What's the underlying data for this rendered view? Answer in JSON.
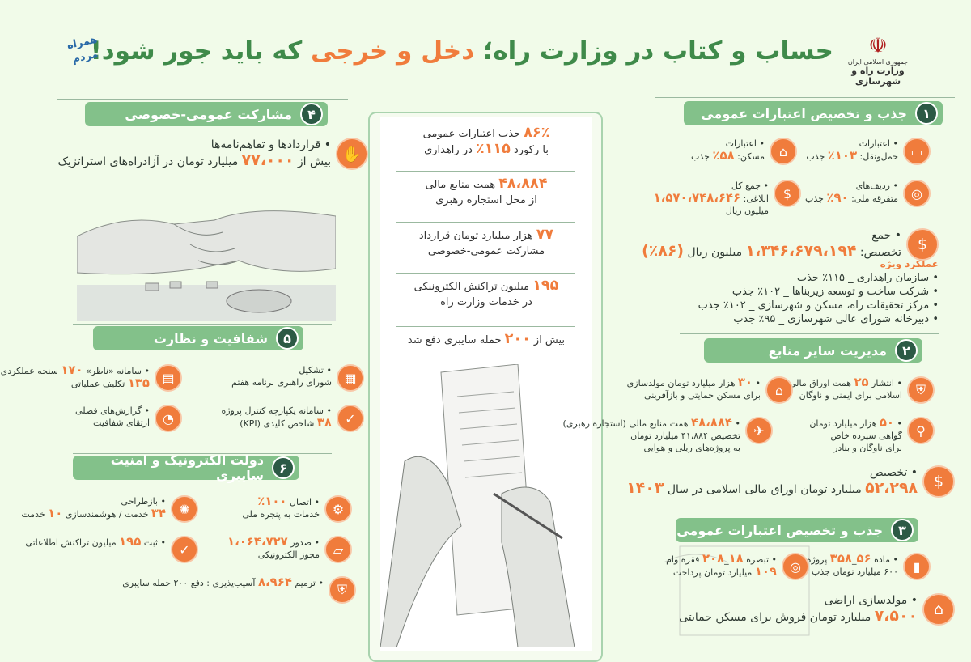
{
  "header": {
    "title_part1": "حساب و کتاب در وزارت راه؛ ",
    "title_highlight": "دخل و خرجی",
    "title_part2": " که باید جور شود!",
    "ministry_line1": "جمهوری اسلامی ایران",
    "ministry_line2": "وزارت راه و شهرسازی",
    "campaign_logo": "همراه مردم"
  },
  "colors": {
    "background": "#f1fbe9",
    "section_green": "#83c18a",
    "number_dark_green": "#2c5a45",
    "accent_orange": "#f07c3c",
    "title_green": "#3f8a4a"
  },
  "sections": [
    {
      "id": "s1",
      "number": "۱",
      "title": "جذب و تخصیص اعتبارات عمومی",
      "items": [
        {
          "icon": "bus-icon",
          "lines": [
            [
              {
                "t": "اعتبارات"
              }
            ],
            [
              {
                "t": "حمل‌ونقل: "
              },
              {
                "t": "۱۰۳٪",
                "hl": true
              },
              {
                "t": " جذب"
              }
            ]
          ]
        },
        {
          "icon": "house-icon",
          "lines": [
            [
              {
                "t": "اعتبارات"
              }
            ],
            [
              {
                "t": "مسکن: "
              },
              {
                "t": "۵۸٪",
                "hl": true
              },
              {
                "t": " جذب"
              }
            ]
          ]
        },
        {
          "icon": "coins-icon",
          "lines": [
            [
              {
                "t": "ردیف‌های"
              }
            ],
            [
              {
                "t": "متفرقه ملی: "
              },
              {
                "t": "۹۰٪",
                "hl": true
              },
              {
                "t": " جذب"
              }
            ]
          ]
        },
        {
          "icon": "money-hand-icon",
          "lines": [
            [
              {
                "t": "جمع کل"
              }
            ],
            [
              {
                "t": "ابلاغی: "
              },
              {
                "t": "۱،۵۷۰،۷۴۸،۶۴۶",
                "hl": true
              },
              {
                "t": " میلیون ریال"
              }
            ]
          ]
        },
        {
          "icon": "money-hand-icon",
          "large": true,
          "lines": [
            [
              {
                "t": "جمع"
              }
            ],
            [
              {
                "t": "تخصیص: "
              },
              {
                "t": "۱،۳۴۶،۶۷۹،۱۹۴",
                "hl": true
              },
              {
                "t": " میلیون ریال "
              },
              {
                "t": "(۸۶٪)",
                "hl": true
              }
            ]
          ]
        }
      ],
      "special": {
        "title": "عملکرد ویژه",
        "items": [
          "سازمان راهداری _ ۱۱۵٪ جذب",
          "شرکت ساخت و توسعه زیربناها _ ۱۰۲٪ جذب",
          "مرکز تحقیقات راه، مسکن و شهرسازی _ ۱۰۲٪ جذب",
          "دبیرخانه شورای عالی شهرسازی _ ۹۵٪ جذب"
        ]
      }
    },
    {
      "id": "s2",
      "number": "۲",
      "title": "مدیریت سایر منابع",
      "items": [
        {
          "icon": "shield-lock-icon",
          "lines": [
            [
              {
                "t": "انتشار "
              },
              {
                "t": "۲۵",
                "hl": true
              },
              {
                "t": " همت اوراق مالی"
              }
            ],
            [
              {
                "t": "اسلامی برای ایمنی و ناوگان"
              }
            ]
          ]
        },
        {
          "icon": "house-hand-icon",
          "lines": [
            [
              {
                "t": "۳۰",
                "hl": true
              },
              {
                "t": " هزار میلیارد تومان مولدسازی"
              }
            ],
            [
              {
                "t": "برای مسکن حمایتی و بازآفرینی"
              }
            ]
          ]
        },
        {
          "icon": "location-pin-icon",
          "lines": [
            [
              {
                "t": "۵۰",
                "hl": true
              },
              {
                "t": " هزار میلیارد تومان"
              }
            ],
            [
              {
                "t": "گواهی سپرده خاص"
              }
            ],
            [
              {
                "t": "برای ناوگان و بنادر"
              }
            ]
          ]
        },
        {
          "icon": "airplane-icon",
          "lines": [
            [
              {
                "t": "۴۸،۸۸۴",
                "hl": true
              },
              {
                "t": " همت منابع مالی (استجاره رهبری)"
              }
            ],
            [
              {
                "t": "تخصیص ۴۱،۸۸۴ میلیارد تومان"
              }
            ],
            [
              {
                "t": "به پروژه‌های ریلی و هوایی"
              }
            ]
          ]
        },
        {
          "icon": "dollar-icon",
          "large": true,
          "lines": [
            [
              {
                "t": "تخصیص"
              }
            ],
            [
              {
                "t": "۵۲،۲۹۸",
                "hl": true
              },
              {
                "t": " میلیارد تومان اوراق مالی اسلامی در سال "
              },
              {
                "t": "۱۴۰۳",
                "hl": true
              }
            ]
          ]
        }
      ]
    },
    {
      "id": "s3",
      "number": "۳",
      "title": "جذب و تخصیص اعتبارات عمومی",
      "items": [
        {
          "icon": "bar-chart-icon",
          "lines": [
            [
              {
                "t": "ماده "
              },
              {
                "t": "۵۶",
                "hl": true
              },
              {
                "t": "_"
              },
              {
                "t": "۳۵۸",
                "hl": true
              },
              {
                "t": " پروژه"
              }
            ],
            [
              {
                "t": "۶۰۰ میلیارد تومان جذب"
              }
            ]
          ]
        },
        {
          "icon": "coins-icon",
          "lines": [
            [
              {
                "t": "تبصره "
              },
              {
                "t": "۱۸",
                "hl": true
              },
              {
                "t": "_"
              },
              {
                "t": "۲۰۸",
                "hl": true
              },
              {
                "t": " فقره وام"
              }
            ],
            [
              {
                "t": "۱۰۹",
                "hl": true
              },
              {
                "t": " میلیارد تومان پرداخت"
              }
            ]
          ]
        },
        {
          "icon": "house-hand-icon",
          "large": true,
          "lines": [
            [
              {
                "t": "مولدسازی اراضی"
              }
            ],
            [
              {
                "t": "۷،۵۰۰",
                "hl": true
              },
              {
                "t": " میلیارد تومان فروش برای مسکن حمایتی"
              }
            ]
          ]
        }
      ]
    },
    {
      "id": "s4",
      "number": "۴",
      "title": "مشارکت عمومی-خصوصی",
      "items": [
        {
          "icon": "handshake-icon",
          "large": true,
          "lines": [
            [
              {
                "t": "قراردادها و تفاهم‌نامه‌ها"
              }
            ],
            [
              {
                "t": "بیش از "
              },
              {
                "t": "۷۷،۰۰۰",
                "hl": true
              },
              {
                "t": " میلیارد تومان در آزادراه‌های استراتژیک"
              }
            ]
          ]
        }
      ]
    },
    {
      "id": "s5",
      "number": "۵",
      "title": "شفافیت و نظارت",
      "items": [
        {
          "icon": "board-plan-icon",
          "lines": [
            [
              {
                "t": "تشکیل"
              }
            ],
            [
              {
                "t": "شورای راهبری برنامه هفتم"
              }
            ]
          ]
        },
        {
          "icon": "dashboard-icon",
          "lines": [
            [
              {
                "t": "سامانه «ناظر» "
              },
              {
                "t": "۱۷۰",
                "hl": true
              },
              {
                "t": " سنجه عملکردی"
              }
            ],
            [
              {
                "t": "۱۳۵",
                "hl": true
              },
              {
                "t": " تکلیف عملیاتی"
              }
            ]
          ]
        },
        {
          "icon": "calendar-check-icon",
          "lines": [
            [
              {
                "t": "سامانه یکپارچه کنترل پروژه"
              }
            ],
            [
              {
                "t": "۳۸",
                "hl": true
              },
              {
                "t": " شاخص کلیدی (KPI)"
              }
            ]
          ]
        },
        {
          "icon": "report-icon",
          "lines": [
            [
              {
                "t": "گزارش‌های فصلی"
              }
            ],
            [
              {
                "t": "ارتقای شفافیت"
              }
            ]
          ]
        }
      ]
    },
    {
      "id": "s6",
      "number": "۶",
      "title": "دولت الکترونیک و امنیت سایبری",
      "items": [
        {
          "icon": "gear-connect-icon",
          "lines": [
            [
              {
                "t": "اتصال "
              },
              {
                "t": "۱۰۰٪",
                "hl": true
              }
            ],
            [
              {
                "t": "خدمات به پنجره ملی"
              }
            ]
          ]
        },
        {
          "icon": "wheel-tools-icon",
          "lines": [
            [
              {
                "t": "بازطراحی"
              }
            ],
            [
              {
                "t": "۳۴",
                "hl": true
              },
              {
                "t": " خدمت / هوشمندسازی "
              },
              {
                "t": "۱۰",
                "hl": true
              },
              {
                "t": " خدمت"
              }
            ]
          ]
        },
        {
          "icon": "folder-icon",
          "lines": [
            [
              {
                "t": "صدور "
              },
              {
                "t": "۱،۰۶۴،۷۲۷",
                "hl": true
              }
            ],
            [
              {
                "t": "مجوز الکترونیکی"
              }
            ]
          ]
        },
        {
          "icon": "calendar-check-icon",
          "lines": [
            [
              {
                "t": "ثبت "
              },
              {
                "t": "۱۹۵",
                "hl": true
              },
              {
                "t": " میلیون تراکنش اطلاعاتی"
              }
            ]
          ]
        },
        {
          "icon": "shield-lock-icon",
          "lines": [
            [
              {
                "t": "ترمیم "
              },
              {
                "t": "۸،۹۶۴",
                "hl": true
              },
              {
                "t": " آسیب‌پذیری : دفع ۲۰۰ حمله سایبری"
              }
            ]
          ]
        }
      ]
    }
  ],
  "summary": [
    [
      [
        {
          "t": "۸۶٪",
          "hl": true
        },
        {
          "t": " جذب اعتبارات عمومی"
        }
      ],
      [
        {
          "t": "با رکورد "
        },
        {
          "t": "۱۱۵٪",
          "hl": true
        },
        {
          "t": " در راهداری"
        }
      ]
    ],
    [
      [
        {
          "t": "۴۸،۸۸۴",
          "hl": true
        },
        {
          "t": " همت منابع مالی"
        }
      ],
      [
        {
          "t": "از محل استجاره رهبری"
        }
      ]
    ],
    [
      [
        {
          "t": "۷۷",
          "hl": true
        },
        {
          "t": " هزار میلیارد تومان قرارداد"
        }
      ],
      [
        {
          "t": "مشارکت عمومی-خصوصی"
        }
      ]
    ],
    [
      [
        {
          "t": "۱۹۵",
          "hl": true
        },
        {
          "t": " میلیون تراکنش الکترونیکی"
        }
      ],
      [
        {
          "t": "در خدمات وزارت راه"
        }
      ]
    ],
    [
      [
        {
          "t": "بیش از "
        },
        {
          "t": "۲۰۰",
          "hl": true
        },
        {
          "t": " حمله سایبری دفع شد"
        }
      ]
    ]
  ]
}
